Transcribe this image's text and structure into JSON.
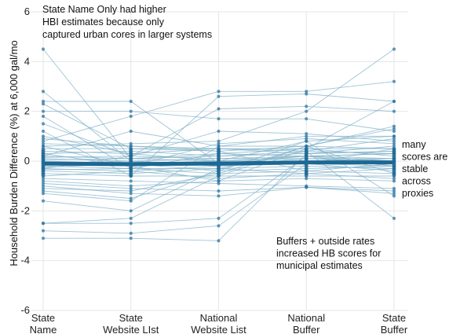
{
  "chart_data": {
    "type": "line",
    "title": "",
    "ylabel": "Household Burden Difference (%)  at 6,000 gal/mo",
    "xlabel": "",
    "categories": [
      [
        "State",
        "Name"
      ],
      [
        "State",
        "Website LIst"
      ],
      [
        "National",
        "Website List"
      ],
      [
        "National",
        "Buffer"
      ],
      [
        "State",
        "Buffer"
      ]
    ],
    "ylim": [
      -6,
      6
    ],
    "yticks": [
      -6,
      -4,
      -2,
      0,
      2,
      4,
      6
    ],
    "ytick_labels": [
      "-6",
      "-4",
      "-2",
      "0",
      "2",
      "4",
      "6"
    ],
    "grid": true,
    "colors": {
      "line": "#7fb0c8",
      "point": "#2e77a3",
      "mean": "#1d6894",
      "grid": "#e6e6e6"
    },
    "mean_series": [
      -0.1,
      -0.12,
      -0.1,
      -0.05,
      -0.05
    ],
    "series": [
      {
        "values": [
          4.5,
          0.1,
          0.2,
          0.3,
          0.4
        ]
      },
      {
        "values": [
          2.8,
          0.0,
          -0.2,
          0.1,
          0.0
        ]
      },
      {
        "values": [
          2.4,
          2.4,
          -0.1,
          0.2,
          0.1
        ]
      },
      {
        "values": [
          2.3,
          0.5,
          0.4,
          0.6,
          0.5
        ]
      },
      {
        "values": [
          2.0,
          2.0,
          1.7,
          1.7,
          1.2
        ]
      },
      {
        "values": [
          1.8,
          -0.3,
          0.3,
          0.2,
          -0.2
        ]
      },
      {
        "values": [
          1.5,
          0.2,
          2.1,
          2.2,
          2.0
        ]
      },
      {
        "values": [
          1.2,
          -0.6,
          2.6,
          2.7,
          2.4
        ]
      },
      {
        "values": [
          1.0,
          0.3,
          0.0,
          0.8,
          1.0
        ]
      },
      {
        "values": [
          0.8,
          1.8,
          2.8,
          2.8,
          3.2
        ]
      },
      {
        "values": [
          0.7,
          0.6,
          0.5,
          0.4,
          0.9
        ]
      },
      {
        "values": [
          0.6,
          0.7,
          0.8,
          2.0,
          4.5
        ]
      },
      {
        "values": [
          0.5,
          0.5,
          0.5,
          0.5,
          0.5
        ]
      },
      {
        "values": [
          0.4,
          0.3,
          0.5,
          0.3,
          0.4
        ]
      },
      {
        "values": [
          0.3,
          0.4,
          0.2,
          0.4,
          0.3
        ]
      },
      {
        "values": [
          0.2,
          0.1,
          0.3,
          0.5,
          0.2
        ]
      },
      {
        "values": [
          0.15,
          0.2,
          0.1,
          0.2,
          0.3
        ]
      },
      {
        "values": [
          0.1,
          0.0,
          0.1,
          0.1,
          0.1
        ]
      },
      {
        "values": [
          0.05,
          0.1,
          0.0,
          0.2,
          0.0
        ]
      },
      {
        "values": [
          0.0,
          -0.1,
          -0.1,
          0.0,
          -0.1
        ]
      },
      {
        "values": [
          -0.05,
          -0.1,
          0.0,
          0.1,
          0.0
        ]
      },
      {
        "values": [
          -0.1,
          0.0,
          -0.2,
          -0.1,
          -0.2
        ]
      },
      {
        "values": [
          -0.15,
          -0.2,
          -0.1,
          0.0,
          0.1
        ]
      },
      {
        "values": [
          -0.2,
          -0.3,
          -0.3,
          -0.2,
          -0.3
        ]
      },
      {
        "values": [
          -0.25,
          -0.1,
          -0.4,
          -0.3,
          -0.2
        ]
      },
      {
        "values": [
          -0.3,
          -0.4,
          -0.2,
          -0.1,
          -0.4
        ]
      },
      {
        "values": [
          -0.35,
          -0.3,
          -0.5,
          -0.4,
          -0.5
        ]
      },
      {
        "values": [
          -0.4,
          -0.5,
          -0.3,
          -0.5,
          -0.3
        ]
      },
      {
        "values": [
          -0.5,
          -0.6,
          -0.6,
          -0.6,
          -0.6
        ]
      },
      {
        "values": [
          -0.6,
          -0.4,
          -0.7,
          -0.5,
          -0.7
        ]
      },
      {
        "values": [
          -0.7,
          -0.8,
          -0.9,
          -1.0,
          -1.1
        ]
      },
      {
        "values": [
          -0.8,
          -1.0,
          -0.8,
          -0.7,
          -0.8
        ]
      },
      {
        "values": [
          -0.9,
          -1.1,
          -1.2,
          -1.05,
          -1.2
        ]
      },
      {
        "values": [
          -1.0,
          -1.3,
          -1.4,
          -1.05,
          -1.3
        ]
      },
      {
        "values": [
          -1.1,
          -1.2,
          -0.5,
          0.6,
          1.4
        ]
      },
      {
        "values": [
          -1.2,
          -1.5,
          -0.4,
          0.8,
          -1.4
        ]
      },
      {
        "values": [
          -1.3,
          -1.6,
          0.6,
          1.0,
          1.0
        ]
      },
      {
        "values": [
          -1.6,
          -2.0,
          -0.3,
          0.4,
          -2.3
        ]
      },
      {
        "values": [
          -2.5,
          -2.3,
          -0.6,
          0.6,
          1.3
        ]
      },
      {
        "values": [
          -2.5,
          -2.5,
          -2.3,
          0.2,
          0.3
        ]
      },
      {
        "values": [
          -2.8,
          -2.9,
          -2.6,
          -0.1,
          0.5
        ]
      },
      {
        "values": [
          -3.1,
          -3.1,
          -3.2,
          0.3,
          0.6
        ]
      },
      {
        "values": [
          0.9,
          0.6,
          0.4,
          -0.4,
          -0.1
        ]
      },
      {
        "values": [
          0.6,
          -0.2,
          0.7,
          0.9,
          0.7
        ]
      },
      {
        "values": [
          -0.3,
          0.2,
          1.2,
          1.1,
          0.8
        ]
      },
      {
        "values": [
          0.3,
          -0.2,
          -0.8,
          0.5,
          2.4
        ]
      },
      {
        "values": [
          0.2,
          1.2,
          0.6,
          0.6,
          -0.5
        ]
      }
    ],
    "annotations": [
      {
        "id": "top-left",
        "lines": [
          "State Name Only had higher",
          "HBI estimates because only",
          "captured urban cores in larger systems"
        ]
      },
      {
        "id": "right",
        "lines": [
          "many",
          "scores are",
          "stable",
          "across",
          "proxies"
        ]
      },
      {
        "id": "bottom",
        "lines": [
          "Buffers + outside rates",
          "increased HB scores for",
          "municipal estimates"
        ]
      }
    ]
  }
}
